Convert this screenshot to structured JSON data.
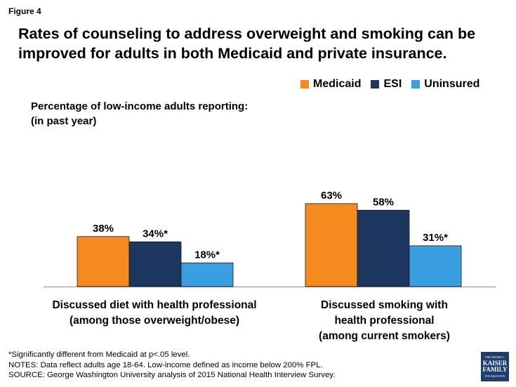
{
  "figure_label": "Figure 4",
  "title": "Rates of counseling to address overweight and smoking can be improved for adults in both Medicaid and private insurance.",
  "colors": {
    "Medicaid": "#f58a1f",
    "ESI": "#1c3660",
    "Uninsured": "#3a9fe0",
    "axis": "#8c8c8c"
  },
  "footnotes": [
    "*Significantly different from Medicaid at p<.05 level.",
    "NOTES: Data reflect adults age 18-64. Low-income defined as income below 200% FPL.",
    "SOURCE: George Washington University analysis of 2015 National Health Interview Survey."
  ],
  "logo": {
    "line1": "THE HENRY J.",
    "line2a": "KAISER",
    "line2b": "FAMILY",
    "line3": "FOUNDATION"
  },
  "chart_data": {
    "type": "bar",
    "title": "",
    "ylabel_lines": [
      "Percentage of low-income adults reporting:",
      "(in past year)"
    ],
    "xlabel": "",
    "ylim": [
      0,
      70
    ],
    "grid": false,
    "legend_position": "top-right",
    "categories": [
      [
        "Discussed diet with health professional",
        "(among those overweight/obese)"
      ],
      [
        "Discussed smoking with",
        "health professional",
        "(among current smokers)"
      ]
    ],
    "series": [
      {
        "name": "Medicaid",
        "values": [
          38,
          63
        ],
        "labels": [
          "38%",
          "63%"
        ]
      },
      {
        "name": "ESI",
        "values": [
          34,
          58
        ],
        "labels": [
          "34%*",
          "58%"
        ]
      },
      {
        "name": "Uninsured",
        "values": [
          18,
          31
        ],
        "labels": [
          "18%*",
          "31%*"
        ]
      }
    ]
  }
}
